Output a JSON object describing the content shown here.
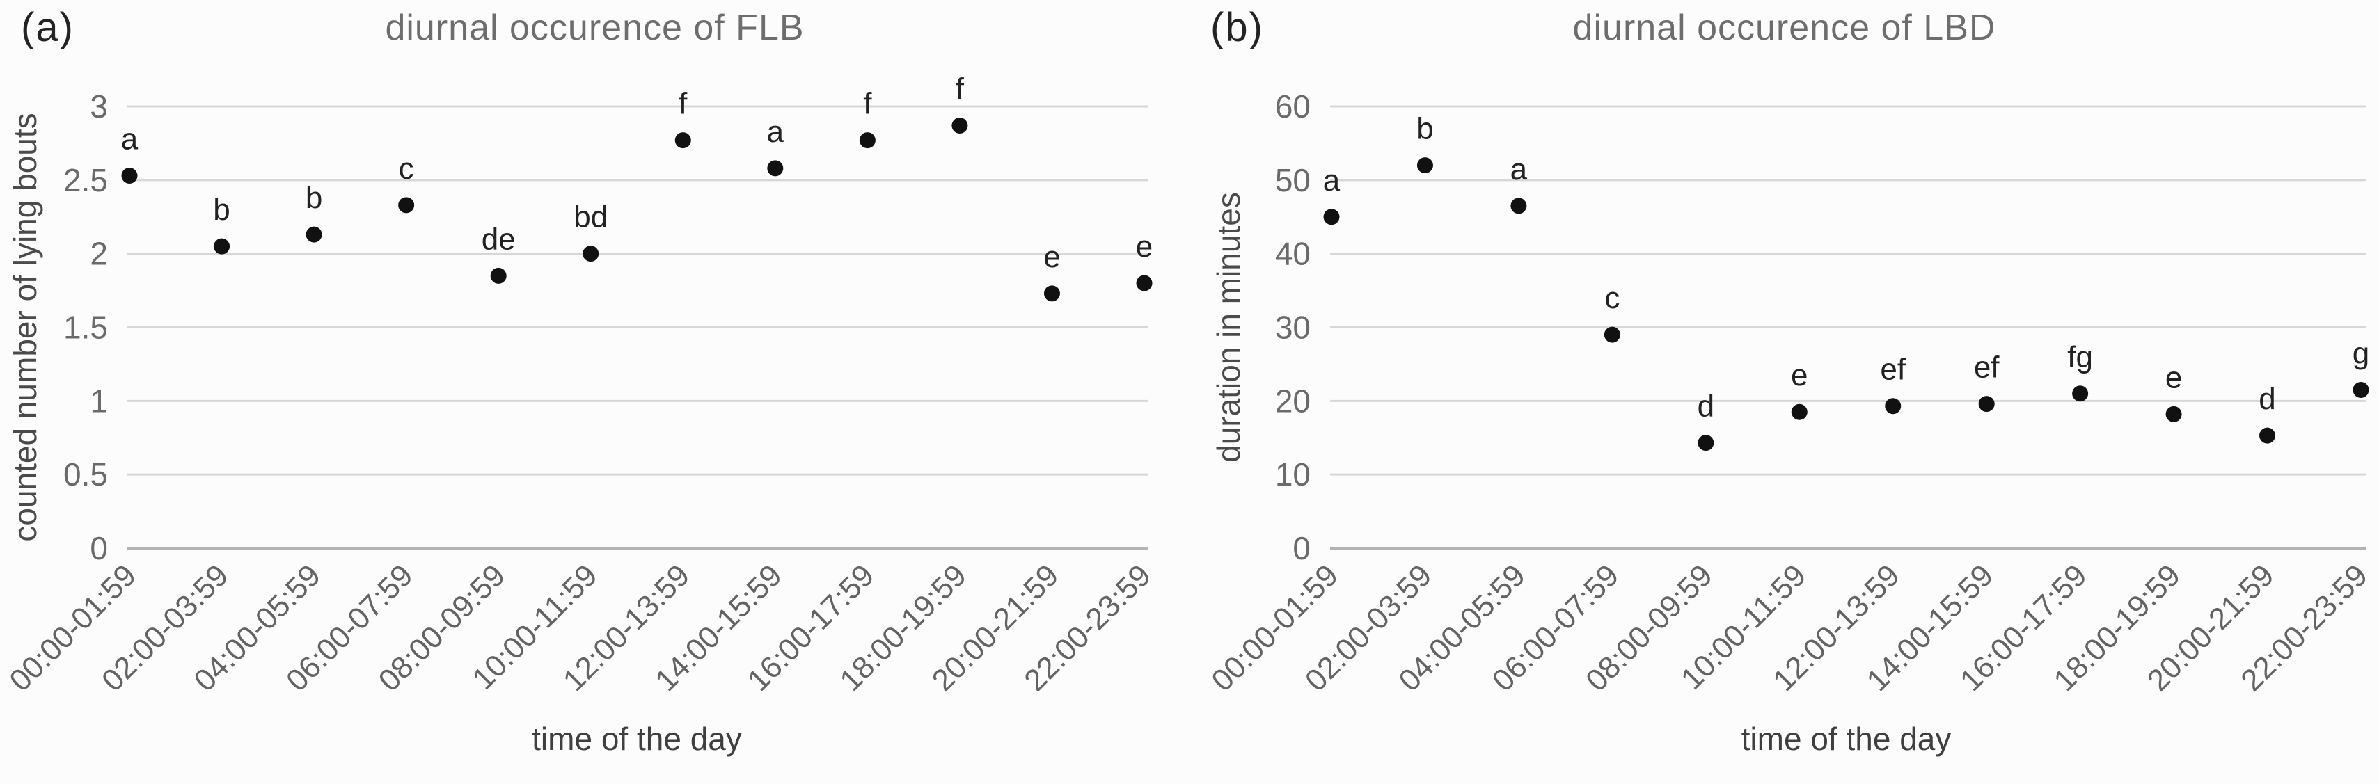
{
  "figure": {
    "panels": [
      {
        "label": "(a)",
        "title": "diurnal occurence of FLB",
        "x_axis_title": "time of the day",
        "y_axis_title": "counted number of lying bouts"
      },
      {
        "label": "(b)",
        "title": "diurnal occurence of LBD",
        "x_axis_title": "time of the day",
        "y_axis_title": "duration in minutes"
      }
    ]
  },
  "colors": {
    "grid_line": "#d7d7d7",
    "zero_axis_line": "#b3b3b3",
    "data_point": "#111111"
  },
  "chart_data": [
    {
      "type": "scatter",
      "title": "diurnal occurence of FLB",
      "xlabel": "time of the day",
      "ylabel": "counted number of lying bouts",
      "ylim": [
        0,
        3
      ],
      "y_ticks": [
        0,
        0.5,
        1,
        1.5,
        2,
        2.5,
        3
      ],
      "grid": true,
      "legend": false,
      "categories": [
        "00:00-01:59",
        "02:00-03:59",
        "04:00-05:59",
        "06:00-07:59",
        "08:00-09:59",
        "10:00-11:59",
        "12:00-13:59",
        "14:00-15:59",
        "16:00-17:59",
        "18:00-19:59",
        "20:00-21:59",
        "22:00-23:59"
      ],
      "series": [
        {
          "name": "FLB",
          "values": [
            2.53,
            2.05,
            2.13,
            2.33,
            1.85,
            2.0,
            2.77,
            2.58,
            2.77,
            2.87,
            1.73,
            1.8
          ],
          "point_labels": [
            "a",
            "b",
            "b",
            "c",
            "de",
            "bd",
            "f",
            "a",
            "f",
            "f",
            "e",
            "e"
          ]
        }
      ]
    },
    {
      "type": "scatter",
      "title": "diurnal occurence of LBD",
      "xlabel": "time of the day",
      "ylabel": "duration in minutes",
      "ylim": [
        0,
        60
      ],
      "y_ticks": [
        0,
        10,
        20,
        30,
        40,
        50,
        60
      ],
      "grid": true,
      "legend": false,
      "categories": [
        "00:00-01:59",
        "02:00-03:59",
        "04:00-05:59",
        "06:00-07:59",
        "08:00-09:59",
        "10:00-11:59",
        "12:00-13:59",
        "14:00-15:59",
        "16:00-17:59",
        "18:00-19:59",
        "20:00-21:59",
        "22:00-23:59"
      ],
      "series": [
        {
          "name": "LBD",
          "values": [
            45,
            52,
            46.5,
            29,
            14.3,
            18.5,
            19.3,
            19.6,
            21,
            18.2,
            15.3,
            21.5
          ],
          "point_labels": [
            "a",
            "b",
            "a",
            "c",
            "d",
            "e",
            "ef",
            "ef",
            "fg",
            "e",
            "d",
            "g"
          ]
        }
      ]
    }
  ]
}
